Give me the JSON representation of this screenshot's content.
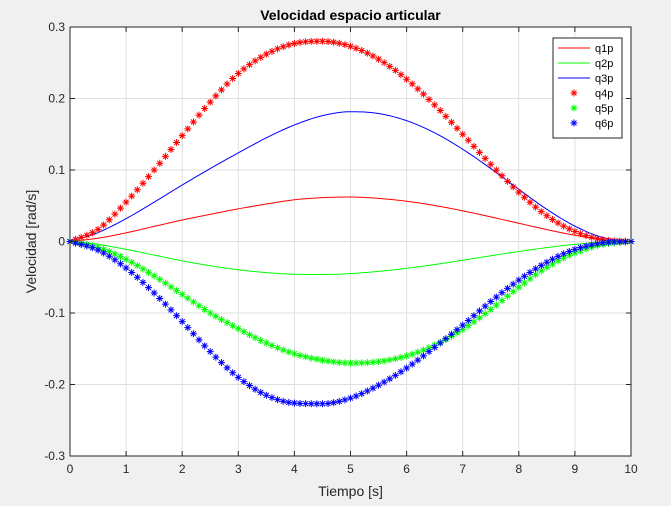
{
  "chart_data": {
    "type": "line",
    "title": "Velocidad espacio articular",
    "xlabel": "Tiempo [s]",
    "ylabel": "Velocidad [rad/s]",
    "xlim": [
      0,
      10
    ],
    "ylim": [
      -0.3,
      0.3
    ],
    "xticks": [
      0,
      1,
      2,
      3,
      4,
      5,
      6,
      7,
      8,
      9,
      10
    ],
    "yticks": [
      -0.3,
      -0.2,
      -0.1,
      0,
      0.1,
      0.2,
      0.3
    ],
    "xtick_labels": [
      "0",
      "1",
      "2",
      "3",
      "4",
      "5",
      "6",
      "7",
      "8",
      "9",
      "10"
    ],
    "ytick_labels": [
      "-0.3",
      "-0.2",
      "-0.1",
      "0",
      "0.1",
      "0.2",
      "0.3"
    ],
    "grid": true,
    "legend_position": "top-right",
    "series": [
      {
        "name": "q1p",
        "style": "line",
        "color": "#ff0000",
        "x": [
          0,
          0.5,
          1,
          1.5,
          2,
          2.5,
          3,
          3.5,
          4,
          4.5,
          5,
          5.5,
          6,
          6.5,
          7,
          7.5,
          8,
          8.5,
          9,
          9.5,
          10
        ],
        "y": [
          0,
          0.0046,
          0.0121,
          0.0211,
          0.0301,
          0.038,
          0.0457,
          0.0524,
          0.0584,
          0.0613,
          0.0622,
          0.0603,
          0.0563,
          0.0504,
          0.0429,
          0.0344,
          0.0255,
          0.0166,
          0.0087,
          0.0025,
          0
        ]
      },
      {
        "name": "q2p",
        "style": "line",
        "color": "#00ff00",
        "x": [
          0,
          0.5,
          1,
          1.5,
          2,
          2.5,
          3,
          3.5,
          4,
          4.5,
          5,
          5.5,
          6,
          6.5,
          7,
          7.5,
          8,
          8.5,
          9,
          9.5,
          10
        ],
        "y": [
          0,
          -0.004,
          -0.011,
          -0.019,
          -0.027,
          -0.034,
          -0.0395,
          -0.0435,
          -0.0458,
          -0.0462,
          -0.0448,
          -0.0418,
          -0.0375,
          -0.0322,
          -0.0262,
          -0.02,
          -0.014,
          -0.0085,
          -0.004,
          -0.001,
          0
        ]
      },
      {
        "name": "q3p",
        "style": "line",
        "color": "#0000ff",
        "x": [
          0,
          0.5,
          1,
          1.5,
          2,
          2.5,
          3,
          3.5,
          4,
          4.5,
          5,
          5.5,
          6,
          6.5,
          7,
          7.5,
          8,
          8.5,
          9,
          9.5,
          10
        ],
        "y": [
          0,
          0.0125,
          0.032,
          0.055,
          0.079,
          0.102,
          0.124,
          0.145,
          0.163,
          0.176,
          0.1815,
          0.179,
          0.169,
          0.152,
          0.129,
          0.102,
          0.073,
          0.045,
          0.0215,
          0.0055,
          0
        ]
      },
      {
        "name": "q4p",
        "style": "marker",
        "color": "#ff0000",
        "x": [
          0,
          0.5,
          1,
          1.5,
          2,
          2.5,
          3,
          3.5,
          4,
          4.5,
          5,
          5.5,
          6,
          6.5,
          7,
          7.5,
          8,
          8.5,
          9,
          9.5,
          10
        ],
        "y": [
          0,
          0.017,
          0.055,
          0.1,
          0.148,
          0.195,
          0.235,
          0.262,
          0.277,
          0.28,
          0.273,
          0.255,
          0.227,
          0.191,
          0.15,
          0.108,
          0.069,
          0.036,
          0.014,
          0.0025,
          0
        ]
      },
      {
        "name": "q5p",
        "style": "marker",
        "color": "#00ff00",
        "x": [
          0,
          0.5,
          1,
          1.5,
          2,
          2.5,
          3,
          3.5,
          4,
          4.5,
          5,
          5.5,
          6,
          6.5,
          7,
          7.5,
          8,
          8.5,
          9,
          9.5,
          10
        ],
        "y": [
          0,
          -0.008,
          -0.025,
          -0.048,
          -0.074,
          -0.1,
          -0.122,
          -0.142,
          -0.157,
          -0.166,
          -0.17,
          -0.168,
          -0.16,
          -0.145,
          -0.123,
          -0.095,
          -0.064,
          -0.036,
          -0.016,
          -0.004,
          0
        ]
      },
      {
        "name": "q6p",
        "style": "marker",
        "color": "#0000ff",
        "x": [
          0,
          0.5,
          1,
          1.5,
          2,
          2.5,
          3,
          3.5,
          4,
          4.5,
          5,
          5.5,
          6,
          6.5,
          7,
          7.5,
          8,
          8.5,
          9,
          9.5,
          10
        ],
        "y": [
          0,
          -0.012,
          -0.037,
          -0.072,
          -0.112,
          -0.154,
          -0.19,
          -0.215,
          -0.226,
          -0.227,
          -0.219,
          -0.201,
          -0.177,
          -0.148,
          -0.117,
          -0.084,
          -0.054,
          -0.029,
          -0.011,
          -0.002,
          0
        ]
      }
    ]
  }
}
